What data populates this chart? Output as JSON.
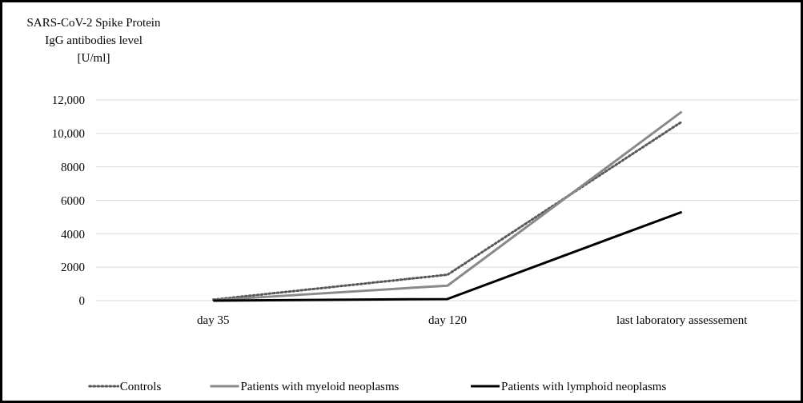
{
  "chart_data": {
    "type": "line",
    "ylabel": "SARS-CoV-2 Spike Protein\nIgG antibodies level\n[U/ml]",
    "categories": [
      "day 35",
      "day 120",
      "last laboratory assessement"
    ],
    "series": [
      {
        "name": "Controls",
        "color": "#595959",
        "line_style": "dotted",
        "values": [
          60,
          1550,
          10700
        ]
      },
      {
        "name": "Patients with myeloid neoplasms",
        "color": "#898989",
        "line_style": "solid",
        "values": [
          30,
          900,
          11300
        ]
      },
      {
        "name": "Patients with lymphoid neoplasms",
        "color": "#000000",
        "line_style": "solid",
        "values": [
          0,
          100,
          5300
        ]
      }
    ],
    "ylim": [
      0,
      12000
    ],
    "yticks": [
      {
        "value": 0,
        "label": "0"
      },
      {
        "value": 2000,
        "label": "2000"
      },
      {
        "value": 4000,
        "label": "4000"
      },
      {
        "value": 6000,
        "label": "6000"
      },
      {
        "value": 8000,
        "label": "8000"
      },
      {
        "value": 10000,
        "label": "10,000"
      },
      {
        "value": 12000,
        "label": "12,000"
      }
    ],
    "grid": "y",
    "legend": "bottom"
  }
}
